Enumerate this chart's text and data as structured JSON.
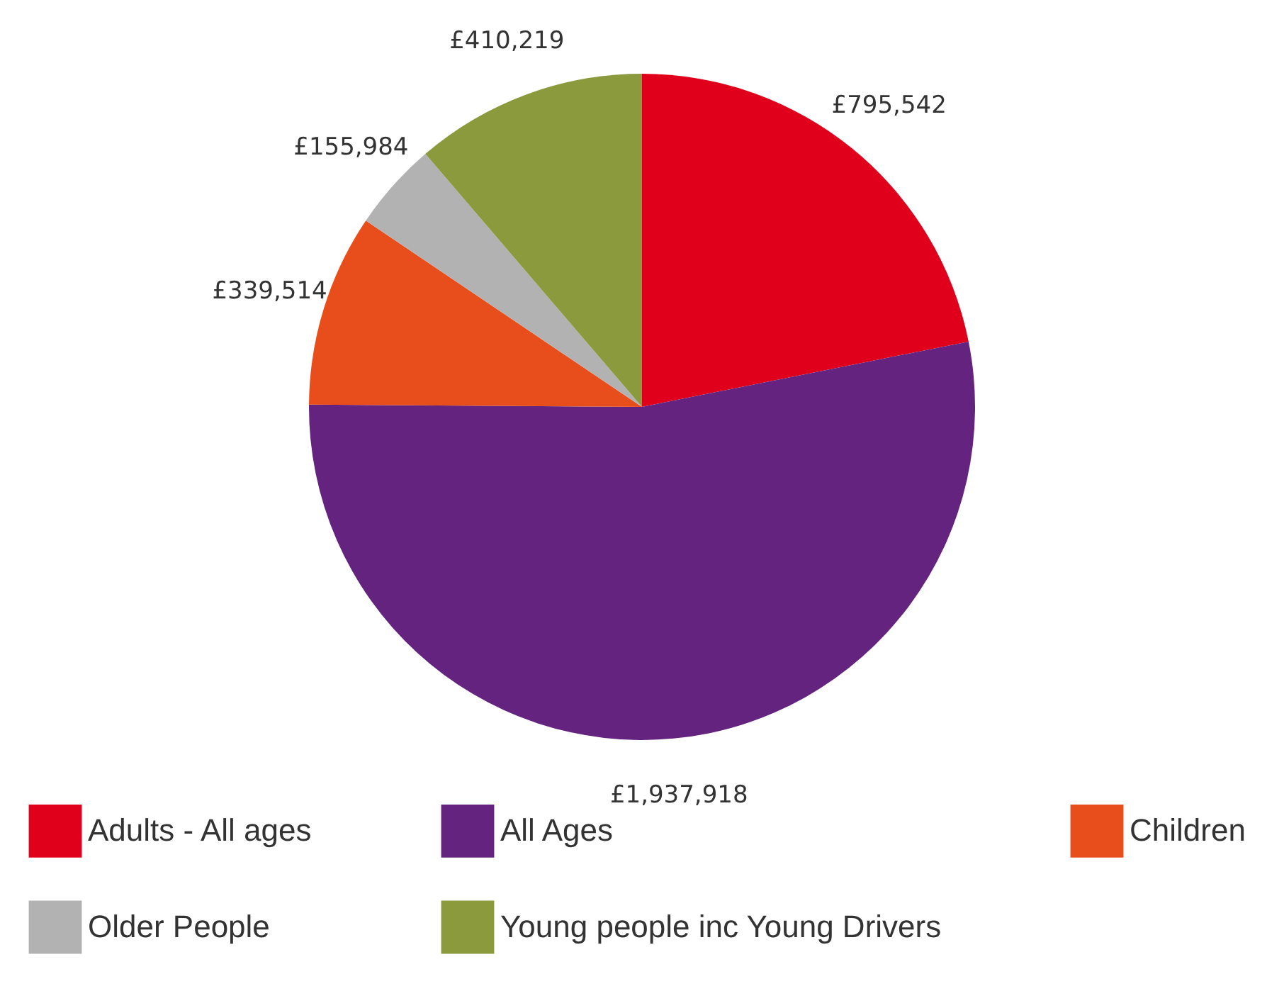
{
  "chart_data": {
    "type": "pie",
    "categories": [
      "Adults - All ages",
      "All Ages",
      "Children",
      "Older People",
      "Young people inc Young Drivers"
    ],
    "values": [
      795542,
      1937918,
      339514,
      155984,
      410219
    ],
    "value_labels": [
      "£795,542",
      "£1,937,918",
      "£339,514",
      "£155,984",
      "£410,219"
    ],
    "colors": [
      "#e0001b",
      "#63237e",
      "#e84e1b",
      "#b2b2b2",
      "#8a9a3c"
    ],
    "legend": "bottom"
  }
}
